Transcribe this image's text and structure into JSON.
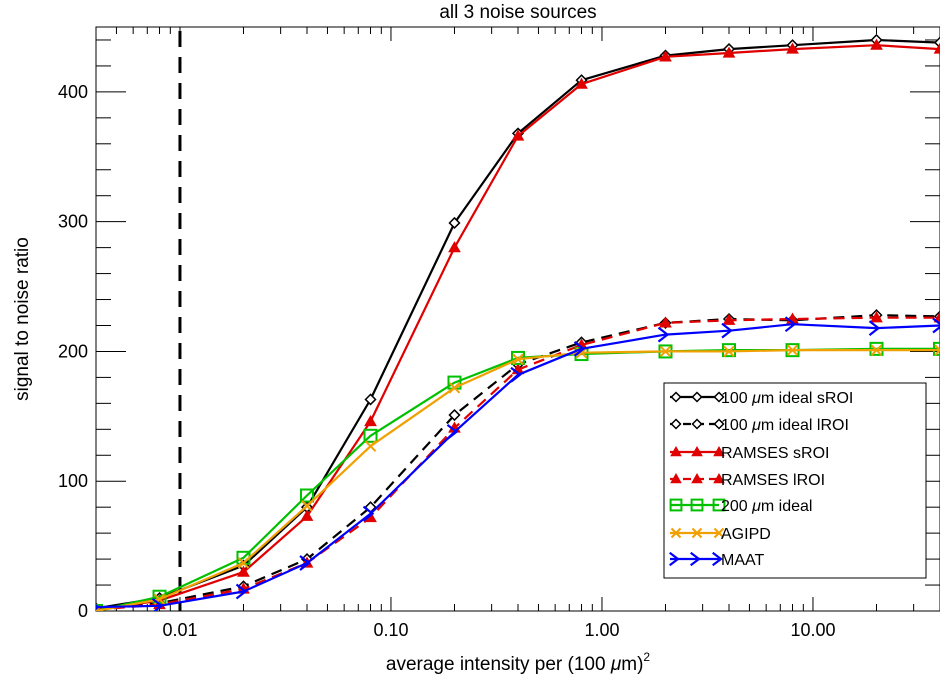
{
  "chart_data": {
    "type": "line",
    "title": "all 3 noise sources",
    "xlabel": "average intensity per (100 μm)²",
    "xlabel_parts": {
      "prefix": "average intensity per (100 ",
      "mu": "μ",
      "suffix": "m)",
      "sup": "2"
    },
    "ylabel": "signal to noise ratio",
    "x_scale": "log",
    "xlim": [
      0.004,
      40
    ],
    "ylim": [
      0,
      450
    ],
    "x_ticks": [
      0.01,
      0.1,
      1,
      10
    ],
    "x_tick_labels": [
      "0.01",
      "0.10",
      "1.00",
      "10.00"
    ],
    "y_ticks": [
      0,
      100,
      200,
      300,
      400
    ],
    "y_tick_labels": [
      "0",
      "100",
      "200",
      "300",
      "400"
    ],
    "vertical_line": {
      "x": 0.01,
      "style": "dashed",
      "color": "#000000"
    },
    "grid": false,
    "legend_position": "bottom-right",
    "series": [
      {
        "name": "100 μm ideal sROI",
        "legend_parts": [
          "100 ",
          "μ",
          "m ideal sROI"
        ],
        "color": "#000000",
        "dash": "solid",
        "marker": "diamond",
        "x": [
          0.004,
          0.008,
          0.02,
          0.04,
          0.08,
          0.2,
          0.4,
          0.8,
          2,
          4,
          8,
          20,
          40
        ],
        "y": [
          2,
          10,
          35,
          80,
          163,
          299,
          368,
          409,
          428,
          433,
          436,
          440,
          438
        ]
      },
      {
        "name": "100 μm ideal lROI",
        "legend_parts": [
          "100 ",
          "μ",
          "m ideal lROI"
        ],
        "color": "#000000",
        "dash": "dashed",
        "marker": "diamond",
        "x": [
          0.004,
          0.008,
          0.02,
          0.04,
          0.08,
          0.2,
          0.4,
          0.8,
          2,
          4,
          8,
          20,
          40
        ],
        "y": [
          1,
          6,
          19,
          40,
          80,
          151,
          190,
          207,
          222,
          225,
          224,
          228,
          227
        ]
      },
      {
        "name": "RAMSES sROI",
        "legend_parts": [
          "RAMSES sROI"
        ],
        "color": "#e00000",
        "dash": "solid",
        "marker": "triangle",
        "x": [
          0.004,
          0.008,
          0.02,
          0.04,
          0.08,
          0.2,
          0.4,
          0.8,
          2,
          4,
          8,
          20,
          40
        ],
        "y": [
          1,
          8,
          30,
          73,
          146,
          280,
          366,
          406,
          427,
          430,
          433,
          436,
          433
        ]
      },
      {
        "name": "RAMSES lROI",
        "legend_parts": [
          "RAMSES lROI"
        ],
        "color": "#e00000",
        "dash": "dashed",
        "marker": "triangle",
        "x": [
          0.004,
          0.008,
          0.02,
          0.04,
          0.08,
          0.2,
          0.4,
          0.8,
          2,
          4,
          8,
          20,
          40
        ],
        "y": [
          1,
          5,
          17,
          37,
          72,
          141,
          186,
          205,
          222,
          224,
          225,
          226,
          226
        ]
      },
      {
        "name": "200 μm ideal",
        "legend_parts": [
          "200 ",
          "μ",
          "m ideal"
        ],
        "color": "#00c000",
        "dash": "solid",
        "marker": "square",
        "x": [
          0.004,
          0.008,
          0.02,
          0.04,
          0.08,
          0.2,
          0.4,
          0.8,
          2,
          4,
          8,
          20,
          40
        ],
        "y": [
          0,
          11,
          41,
          89,
          135,
          176,
          195,
          198,
          200,
          201,
          201,
          202,
          202
        ]
      },
      {
        "name": "AGIPD",
        "legend_parts": [
          "AGIPD"
        ],
        "color": "#f0a000",
        "dash": "solid",
        "marker": "x",
        "x": [
          0.004,
          0.008,
          0.02,
          0.04,
          0.08,
          0.2,
          0.4,
          0.8,
          2,
          4,
          8,
          20,
          40
        ],
        "y": [
          0,
          9,
          37,
          81,
          127,
          172,
          194,
          199,
          200,
          200,
          201,
          201,
          201
        ]
      },
      {
        "name": "MAAT",
        "legend_parts": [
          "MAAT"
        ],
        "color": "#0000ff",
        "dash": "solid",
        "marker": "arrow",
        "x": [
          0.004,
          0.008,
          0.02,
          0.04,
          0.08,
          0.2,
          0.4,
          0.8,
          2,
          4,
          8,
          20,
          40
        ],
        "y": [
          3,
          4,
          15,
          37,
          75,
          138,
          182,
          202,
          213,
          216,
          221,
          218,
          220
        ]
      }
    ]
  }
}
